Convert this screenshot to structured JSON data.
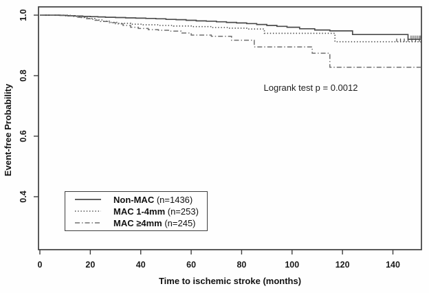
{
  "chart_data": {
    "type": "line",
    "subtype": "kaplan-meier-step",
    "title": "",
    "xlabel": "Time to ischemic stroke (months)",
    "ylabel": "Event-free Probability",
    "xlim": [
      0,
      152
    ],
    "ylim_drawn": [
      0.22,
      1.03
    ],
    "grid": "off",
    "x_ticks": [
      0,
      20,
      40,
      60,
      80,
      100,
      120,
      140
    ],
    "y_ticks": [
      1.0,
      0.8,
      0.6,
      0.4
    ],
    "y_tick_labels": [
      "1.0",
      "0.8",
      "0.6",
      "0.4"
    ],
    "annotation": {
      "text": "Logrank test p = 0.0012",
      "x_months": 106,
      "y_prob": 0.76
    },
    "legend": {
      "position": "bottom-left",
      "items": [
        {
          "name": "Non-MAC",
          "n": "(n=1436)",
          "style": "solid"
        },
        {
          "name": "MAC 1-4mm",
          "n": "(n=253)",
          "style": "dotted"
        },
        {
          "name": "MAC ≥4mm",
          "n": "(n=245)",
          "style": "dashdot"
        }
      ]
    },
    "series": [
      {
        "name": "Non-MAC",
        "style": "solid",
        "points": [
          [
            0,
            1.0
          ],
          [
            8,
            0.999
          ],
          [
            11,
            0.998
          ],
          [
            14,
            0.997
          ],
          [
            17,
            0.996
          ],
          [
            20,
            0.995
          ],
          [
            23,
            0.994
          ],
          [
            26,
            0.993
          ],
          [
            30,
            0.992
          ],
          [
            34,
            0.991
          ],
          [
            38,
            0.99
          ],
          [
            42,
            0.989
          ],
          [
            46,
            0.988
          ],
          [
            50,
            0.986
          ],
          [
            54,
            0.985
          ],
          [
            58,
            0.983
          ],
          [
            62,
            0.981
          ],
          [
            66,
            0.98
          ],
          [
            70,
            0.978
          ],
          [
            74,
            0.976
          ],
          [
            78,
            0.974
          ],
          [
            82,
            0.972
          ],
          [
            86,
            0.969
          ],
          [
            90,
            0.966
          ],
          [
            94,
            0.963
          ],
          [
            98,
            0.96
          ],
          [
            103,
            0.955
          ],
          [
            109,
            0.951
          ],
          [
            115,
            0.948
          ],
          [
            124,
            0.936
          ],
          [
            146,
            0.92
          ],
          [
            151,
            0.92
          ]
        ],
        "censor_ticks": {
          "months": [
            147.2,
            148.0,
            148.8,
            149.6,
            150.4,
            151.0
          ],
          "p": 0.92
        }
      },
      {
        "name": "MAC 1-4mm",
        "style": "dotted",
        "points": [
          [
            0,
            1.0
          ],
          [
            10,
            0.998
          ],
          [
            13,
            0.996
          ],
          [
            16,
            0.992
          ],
          [
            19,
            0.989
          ],
          [
            22,
            0.984
          ],
          [
            25,
            0.98
          ],
          [
            28,
            0.976
          ],
          [
            31,
            0.973
          ],
          [
            36,
            0.97
          ],
          [
            41,
            0.968
          ],
          [
            47,
            0.966
          ],
          [
            53,
            0.964
          ],
          [
            60,
            0.962
          ],
          [
            68,
            0.959
          ],
          [
            75,
            0.957
          ],
          [
            82,
            0.954
          ],
          [
            89,
            0.94
          ],
          [
            117,
            0.912
          ],
          [
            151,
            0.91
          ]
        ],
        "censor_ticks": {
          "months": [
            141.5,
            143.0,
            144.5,
            146.0,
            147.5,
            149.0,
            150.5
          ],
          "p": 0.91
        }
      },
      {
        "name": "MAC ≥4mm",
        "style": "dashdot",
        "points": [
          [
            0,
            1.0
          ],
          [
            12,
            0.997
          ],
          [
            15,
            0.993
          ],
          [
            18,
            0.988
          ],
          [
            21,
            0.983
          ],
          [
            24,
            0.979
          ],
          [
            27,
            0.975
          ],
          [
            30,
            0.971
          ],
          [
            33,
            0.966
          ],
          [
            36,
            0.96
          ],
          [
            39,
            0.956
          ],
          [
            43,
            0.952
          ],
          [
            47,
            0.95
          ],
          [
            51,
            0.947
          ],
          [
            56,
            0.941
          ],
          [
            60,
            0.934
          ],
          [
            68,
            0.93
          ],
          [
            76,
            0.917
          ],
          [
            85,
            0.895
          ],
          [
            108,
            0.874
          ],
          [
            115,
            0.828
          ],
          [
            151,
            0.828
          ]
        ],
        "censor_ticks": {
          "months": [],
          "p": 0.828
        }
      }
    ]
  }
}
